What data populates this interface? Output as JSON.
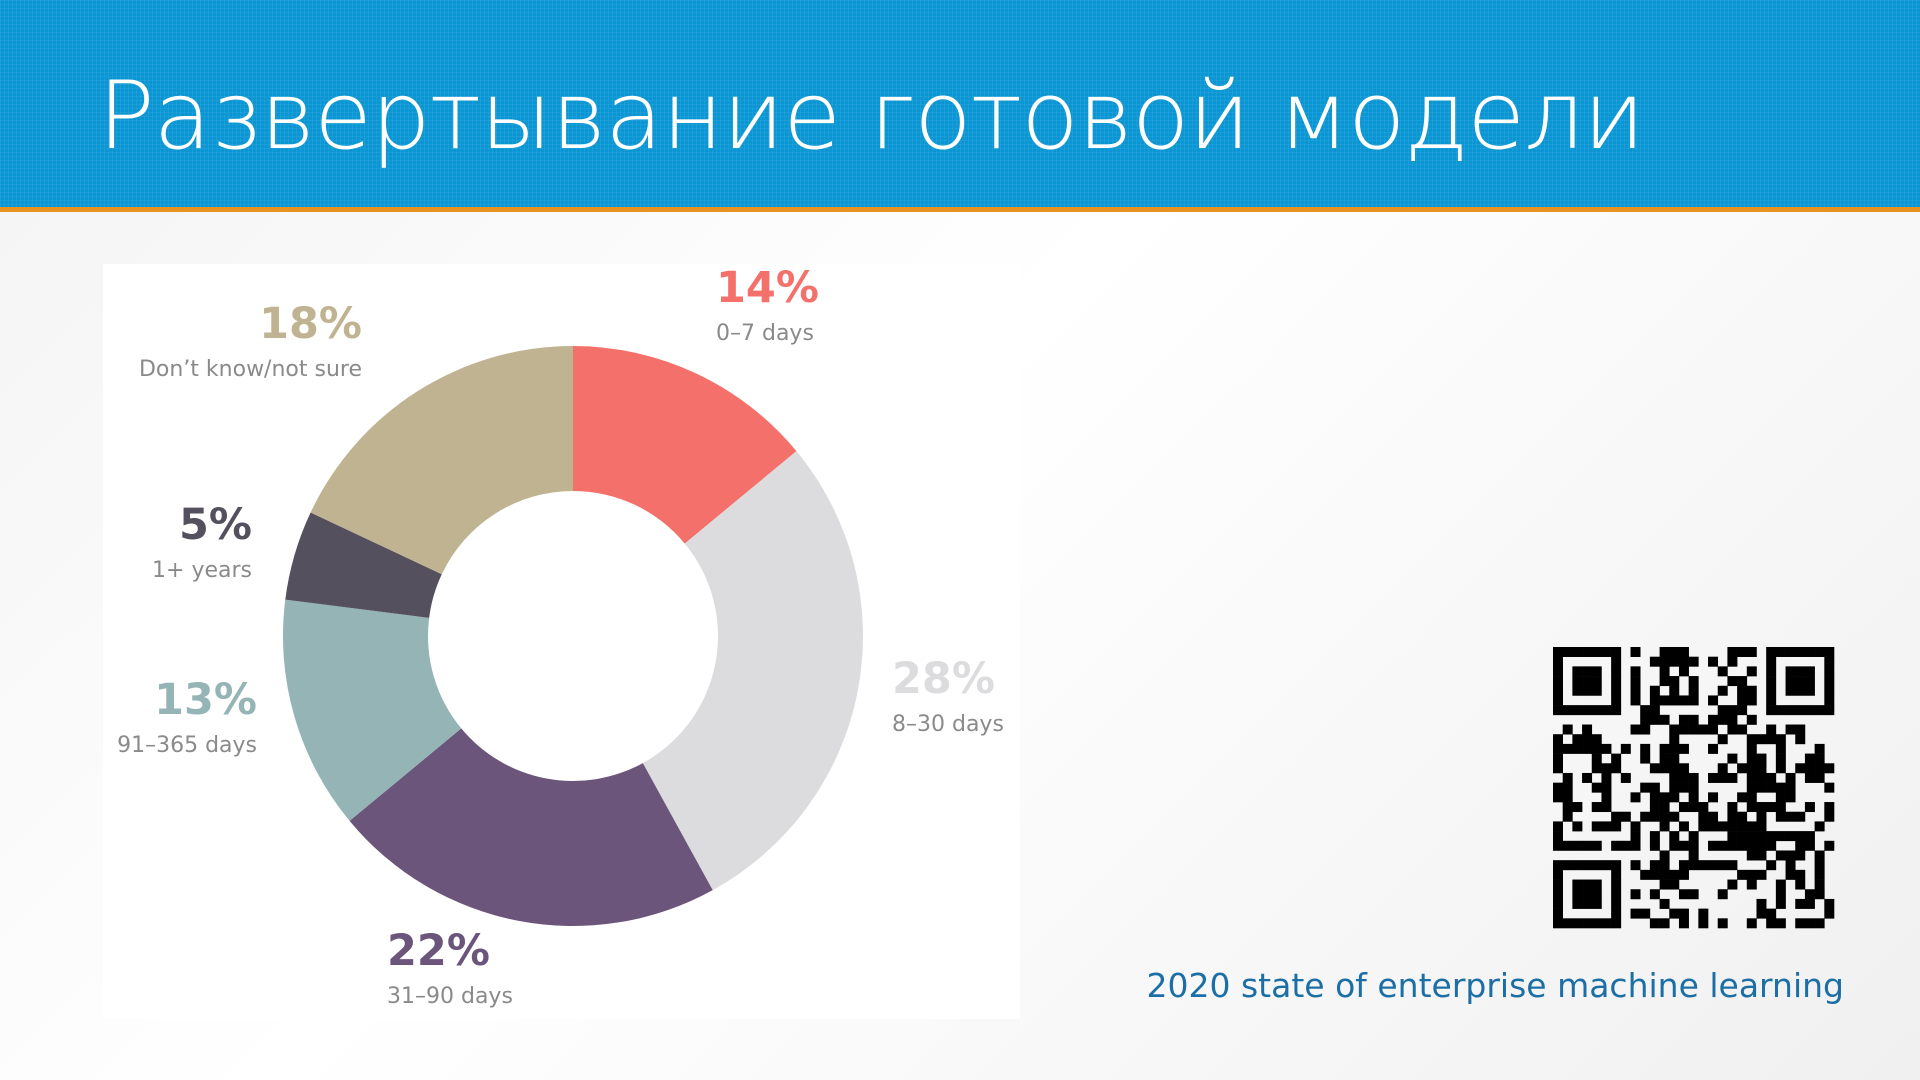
{
  "slide": {
    "title": "Развертывание готовой модели",
    "source": "2020 state of enterprise machine learning"
  },
  "chart_data": {
    "type": "pie",
    "donut": true,
    "categories": [
      "0–7 days",
      "8–30 days",
      "31–90 days",
      "91–365 days",
      "1+ years",
      "Don’t know/not sure"
    ],
    "values": [
      14,
      28,
      22,
      13,
      5,
      18
    ],
    "value_labels": [
      "14%",
      "28%",
      "22%",
      "13%",
      "5%",
      "18%"
    ],
    "colors": [
      "#f4706a",
      "#dcdcde",
      "#6b557a",
      "#95b4b5",
      "#54505e",
      "#bfb391"
    ]
  }
}
